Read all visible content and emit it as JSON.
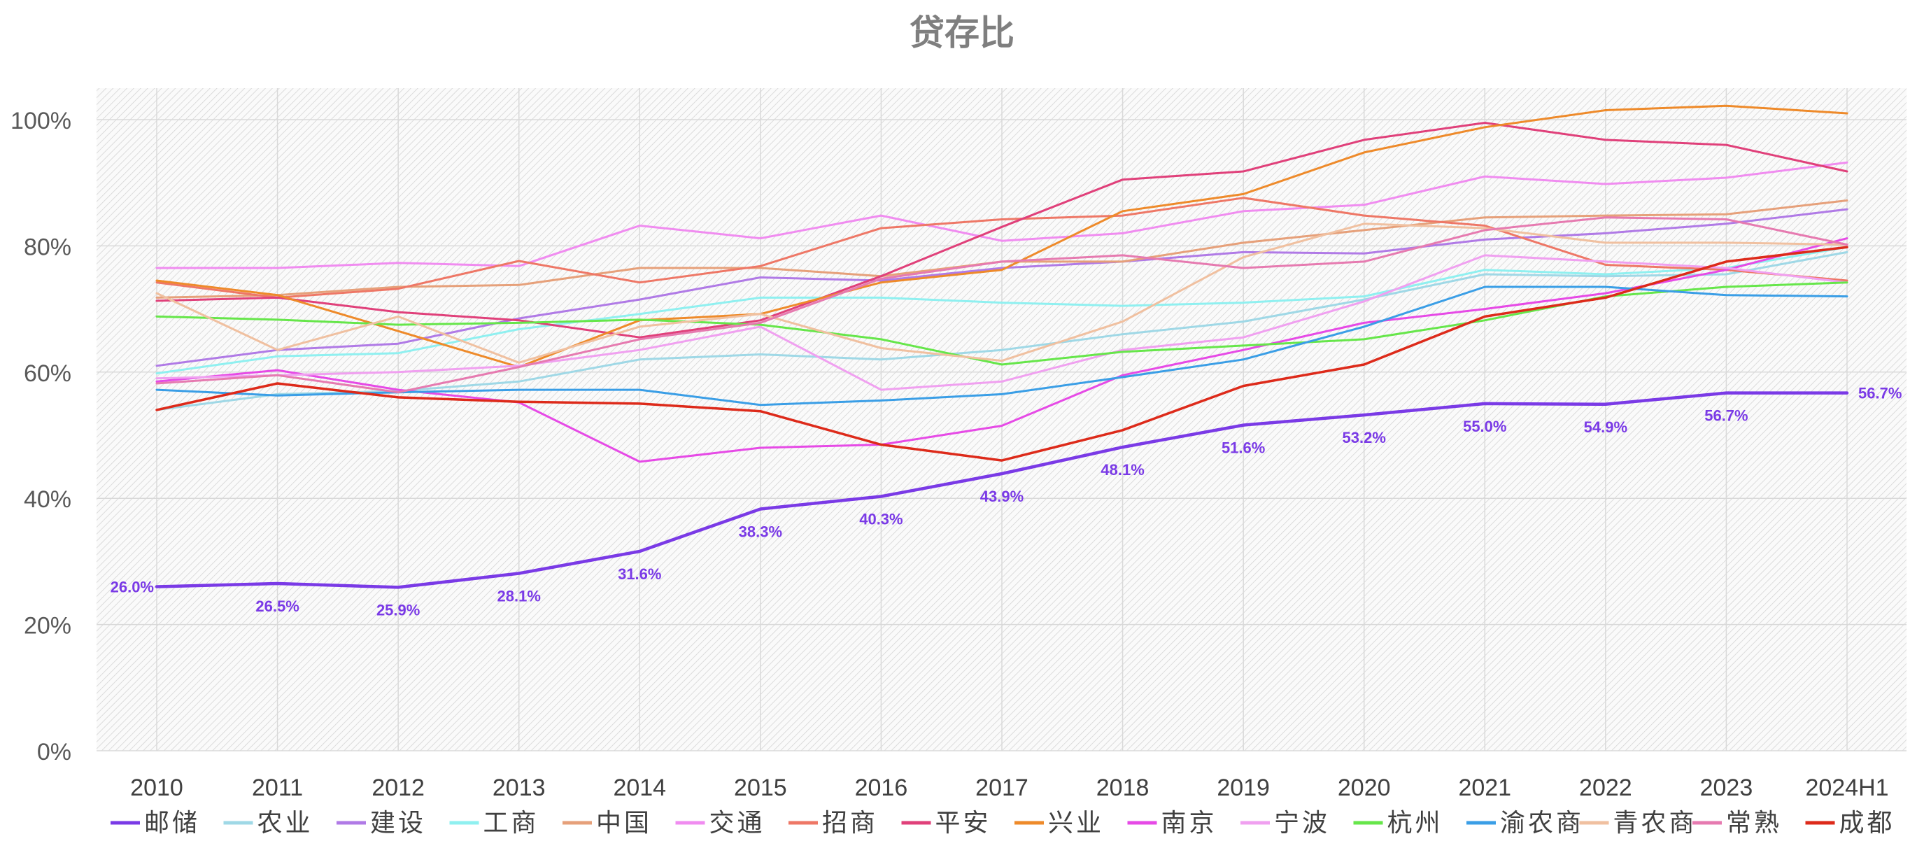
{
  "chart_data": {
    "type": "line",
    "title": "贷存比",
    "xlabel": "",
    "ylabel": "",
    "ylim": [
      0,
      1.05
    ],
    "y_ticks": [
      "0%",
      "20%",
      "40%",
      "60%",
      "80%",
      "100%"
    ],
    "grid": true,
    "legend_position": "bottom",
    "categories": [
      "2010",
      "2011",
      "2012",
      "2013",
      "2014",
      "2015",
      "2016",
      "2017",
      "2018",
      "2019",
      "2020",
      "2021",
      "2022",
      "2023",
      "2024H1"
    ],
    "series": [
      {
        "name": "农业",
        "color": "#9fd8e6",
        "width": 3,
        "values": [
          0.54,
          0.565,
          0.57,
          0.585,
          0.62,
          0.628,
          0.62,
          0.635,
          0.66,
          0.68,
          0.715,
          0.755,
          0.752,
          0.755,
          0.79
        ]
      },
      {
        "name": "建设",
        "color": "#b07ae6",
        "width": 3,
        "values": [
          0.61,
          0.635,
          0.645,
          0.685,
          0.715,
          0.75,
          0.745,
          0.765,
          0.775,
          0.79,
          0.788,
          0.81,
          0.82,
          0.835,
          0.858
        ]
      },
      {
        "name": "工商",
        "color": "#8ff0f0",
        "width": 3,
        "values": [
          0.598,
          0.625,
          0.63,
          0.668,
          0.692,
          0.718,
          0.718,
          0.71,
          0.705,
          0.71,
          0.72,
          0.762,
          0.755,
          0.765,
          0.798
        ]
      },
      {
        "name": "中国",
        "color": "#e6a07a",
        "width": 3,
        "values": [
          0.718,
          0.722,
          0.735,
          0.738,
          0.765,
          0.765,
          0.752,
          0.775,
          0.775,
          0.805,
          0.825,
          0.845,
          0.848,
          0.85,
          0.872
        ]
      },
      {
        "name": "交通",
        "color": "#f08cf0",
        "width": 3,
        "values": [
          0.765,
          0.765,
          0.773,
          0.768,
          0.832,
          0.812,
          0.848,
          0.808,
          0.82,
          0.855,
          0.865,
          0.91,
          0.898,
          0.908,
          0.932
        ]
      },
      {
        "name": "招商",
        "color": "#ee7766",
        "width": 3,
        "values": [
          0.742,
          0.718,
          0.732,
          0.776,
          0.742,
          0.768,
          0.828,
          0.842,
          0.848,
          0.876,
          0.848,
          0.832,
          0.77,
          0.762,
          0.745
        ]
      },
      {
        "name": "平安",
        "color": "#e0407a",
        "width": 3,
        "values": [
          0.713,
          0.718,
          0.695,
          0.682,
          0.655,
          0.682,
          0.752,
          0.83,
          0.905,
          0.918,
          0.968,
          0.995,
          0.968,
          0.96,
          0.918
        ]
      },
      {
        "name": "兴业",
        "color": "#ee8a2a",
        "width": 3,
        "values": [
          0.745,
          0.722,
          0.665,
          0.608,
          0.682,
          0.692,
          0.742,
          0.762,
          0.855,
          0.882,
          0.948,
          0.988,
          1.015,
          1.022,
          1.01
        ]
      },
      {
        "name": "南京",
        "color": "#e64ae6",
        "width": 3,
        "values": [
          0.585,
          0.603,
          0.572,
          0.552,
          0.458,
          0.48,
          0.485,
          0.515,
          0.595,
          0.635,
          0.678,
          0.7,
          0.725,
          0.762,
          0.812
        ]
      },
      {
        "name": "宁波",
        "color": "#f0a0f0",
        "width": 3,
        "values": [
          0.59,
          0.595,
          0.6,
          0.61,
          0.635,
          0.672,
          0.572,
          0.585,
          0.635,
          0.655,
          0.712,
          0.785,
          0.775,
          0.765,
          0.742
        ]
      },
      {
        "name": "杭州",
        "color": "#66e64a",
        "width": 3,
        "values": [
          0.688,
          0.683,
          0.675,
          0.678,
          0.683,
          0.675,
          0.652,
          0.612,
          0.632,
          0.642,
          0.652,
          0.682,
          0.72,
          0.735,
          0.742
        ]
      },
      {
        "name": "渝农商",
        "color": "#3a9ee6",
        "width": 3,
        "values": [
          0.572,
          0.563,
          0.568,
          0.572,
          0.572,
          0.548,
          0.555,
          0.565,
          0.592,
          0.62,
          0.672,
          0.735,
          0.735,
          0.722,
          0.72
        ]
      },
      {
        "name": "青农商",
        "color": "#f0c0a0",
        "width": 3,
        "values": [
          0.725,
          0.635,
          0.688,
          0.615,
          0.672,
          0.692,
          0.638,
          0.618,
          0.68,
          0.782,
          0.835,
          0.828,
          0.805,
          0.805,
          0.802
        ]
      },
      {
        "name": "常熟",
        "color": "#e67ab0",
        "width": 3,
        "values": [
          0.582,
          0.595,
          0.568,
          0.608,
          0.652,
          0.678,
          0.748,
          0.775,
          0.785,
          0.765,
          0.775,
          0.825,
          0.845,
          0.842,
          0.802
        ]
      },
      {
        "name": "成都",
        "color": "#dd2a1a",
        "width": 3.5,
        "values": [
          0.54,
          0.582,
          0.56,
          0.553,
          0.55,
          0.538,
          0.485,
          0.46,
          0.508,
          0.578,
          0.612,
          0.688,
          0.718,
          0.775,
          0.798
        ]
      },
      {
        "name": "邮储",
        "color": "#7a3ae6",
        "width": 4.5,
        "values": [
          0.26,
          0.265,
          0.259,
          0.281,
          0.316,
          0.383,
          0.403,
          0.439,
          0.481,
          0.516,
          0.532,
          0.55,
          0.549,
          0.567,
          0.567
        ]
      }
    ],
    "legend_order": [
      "邮储",
      "农业",
      "建设",
      "工商",
      "中国",
      "交通",
      "招商",
      "平安",
      "兴业",
      "南京",
      "宁波",
      "杭州",
      "渝农商",
      "青农商",
      "常熟",
      "成都"
    ],
    "data_labels": {
      "series": "邮储",
      "color": "#7a3ae6",
      "labels": [
        "26.0%",
        "26.5%",
        "25.9%",
        "28.1%",
        "31.6%",
        "38.3%",
        "40.3%",
        "43.9%",
        "48.1%",
        "51.6%",
        "53.2%",
        "55.0%",
        "54.9%",
        "56.7%",
        "56.7%"
      ]
    }
  }
}
